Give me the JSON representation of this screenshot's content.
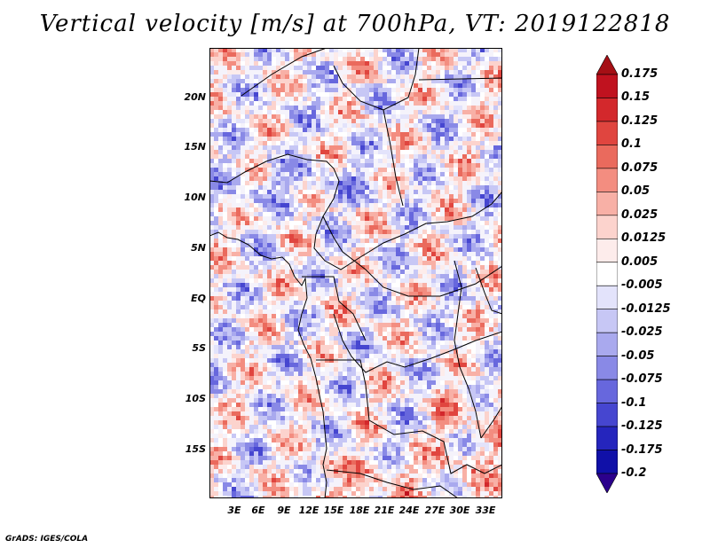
{
  "title": "Vertical velocity [m/s] at 700hPa, VT: 2019122818",
  "credit": "GrADS: IGES/COLA",
  "map": {
    "lat_labels": [
      "20N",
      "15N",
      "10N",
      "5N",
      "EQ",
      "5S",
      "10S",
      "15S"
    ],
    "lon_labels": [
      "3E",
      "6E",
      "9E",
      "12E",
      "15E",
      "18E",
      "21E",
      "24E",
      "27E",
      "30E",
      "33E"
    ],
    "field": "vertical velocity",
    "colors": {
      "positive": "#b2182b",
      "negative": "#2a2ad4",
      "neutral": "#ffffff",
      "coast": "#000000"
    }
  },
  "colorbar": {
    "labels": [
      "0.175",
      "0.15",
      "0.125",
      "0.1",
      "0.075",
      "0.05",
      "0.025",
      "0.0125",
      "0.005",
      "-0.005",
      "-0.0125",
      "-0.025",
      "-0.05",
      "-0.075",
      "-0.1",
      "-0.125",
      "-0.175",
      "-0.2"
    ],
    "colors": [
      "#a50f15",
      "#c0121f",
      "#d3282c",
      "#e0453f",
      "#ea6a5d",
      "#f38d80",
      "#f8b0a6",
      "#fcd3cd",
      "#fdeceb",
      "#ffffff",
      "#e3e3fb",
      "#c7c7f5",
      "#a9a9ee",
      "#8989e6",
      "#6767dd",
      "#4646d0",
      "#2525bd",
      "#1010a8",
      "#2b008c"
    ]
  }
}
